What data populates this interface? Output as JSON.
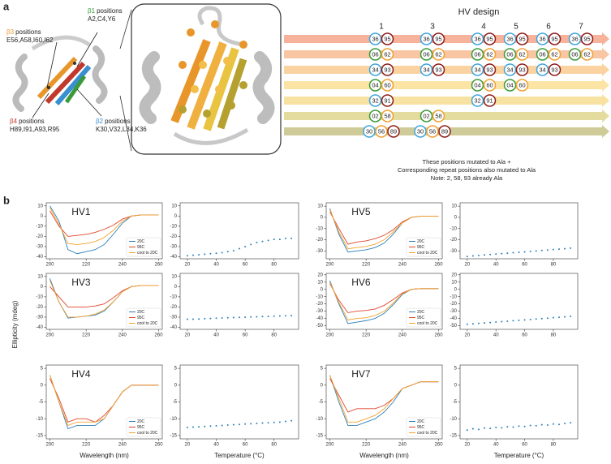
{
  "panel_a": {
    "label": "a",
    "strands": [
      {
        "strand": "β3",
        "suffix": "positions",
        "residues": "E56,A58,I60,I62",
        "color": "#e8962a"
      },
      {
        "strand": "β1",
        "suffix": "positions",
        "residues": "A2,C4,Y6",
        "color": "#3a9a3a"
      },
      {
        "strand": "β4",
        "suffix": "positions",
        "residues": "H89,I91,A93,R95",
        "color": "#c0392b"
      },
      {
        "strand": "β2",
        "suffix": "positions",
        "residues": "K30,V32,L34,K36",
        "color": "#3a8fd0"
      }
    ],
    "design": {
      "title": "HV design",
      "columns": [
        "1",
        "3",
        "4",
        "5",
        "6",
        "7"
      ],
      "rows": [
        {
          "arrow": "#f6b29a",
          "colors": [
            "#3fa4de",
            "#8e1b1b"
          ],
          "cells": [
            [
              "36",
              "95"
            ],
            [
              "36",
              "95"
            ],
            [
              "36",
              "95"
            ],
            [
              "36",
              "95"
            ],
            [
              "36",
              "95"
            ],
            [
              "36",
              "95"
            ]
          ]
        },
        {
          "arrow": "#f9c6a4",
          "colors": [
            "#3a9a3a",
            "#f0a030"
          ],
          "cells": [
            [
              "06",
              "62"
            ],
            [
              "06",
              "62"
            ],
            [
              "06",
              "62"
            ],
            [
              "06",
              "62"
            ],
            [
              "06",
              "62"
            ],
            [
              "06",
              "62"
            ]
          ]
        },
        {
          "arrow": "#fbd3a0",
          "colors": [
            "#3fa4de",
            "#8e1b1b"
          ],
          "cells": [
            [
              "34",
              "93"
            ],
            [
              "34",
              "93"
            ],
            [
              "34",
              "93"
            ],
            [
              "34",
              "93"
            ],
            [
              "34",
              "93"
            ],
            null
          ]
        },
        {
          "arrow": "#fce5a4",
          "colors": [
            "#3a9a3a",
            "#f0a030"
          ],
          "cells": [
            [
              "04",
              "60"
            ],
            null,
            [
              "04",
              "60"
            ],
            [
              "04",
              "60"
            ],
            null,
            null
          ]
        },
        {
          "arrow": "#f8e2a2",
          "colors": [
            "#3fa4de",
            "#8e1b1b"
          ],
          "cells": [
            [
              "32",
              "91"
            ],
            null,
            [
              "32",
              "91"
            ],
            null,
            null,
            null
          ]
        },
        {
          "arrow": "#e4dc9e",
          "colors": [
            "#3a9a3a",
            "#f0a030"
          ],
          "cells": [
            [
              "02",
              "58"
            ],
            [
              "02",
              "58"
            ],
            null,
            null,
            null,
            null
          ]
        },
        {
          "arrow": "#cfcb98",
          "colors": [
            "#3fa4de",
            "#f0a030",
            "#8e1b1b"
          ],
          "cells": [
            [
              "30",
              "56",
              "89"
            ],
            [
              "30",
              "56",
              "89"
            ],
            null,
            null,
            null,
            null
          ]
        }
      ]
    },
    "note": [
      "These positions mutated to Ala +",
      "Corresponding repeat positions also mutated to Ala",
      "Note: 2, 58, 93 already Ala"
    ]
  },
  "panel_b": {
    "label": "b",
    "ylabel": "Ellipticity (mdeg)"
  },
  "chart_data": [
    {
      "type": "line",
      "title": "HV1",
      "x": [
        200,
        205,
        210,
        215,
        220,
        225,
        230,
        235,
        240,
        245,
        250,
        255,
        260
      ],
      "xlim": [
        198,
        262
      ],
      "xticks": [
        200,
        220,
        240,
        260
      ],
      "ylim": [
        -42,
        13
      ],
      "yticks": [
        10,
        0,
        -10,
        -20,
        -30,
        -40
      ],
      "series": [
        {
          "name": "20C",
          "color": "#2c7fb8",
          "values": [
            10,
            -5,
            -33,
            -37,
            -35,
            -33,
            -28,
            -18,
            -7,
            0,
            1,
            1,
            1
          ]
        },
        {
          "name": "95C",
          "color": "#e0452a",
          "values": [
            5,
            -10,
            -20,
            -19,
            -18,
            -16,
            -13,
            -9,
            -3,
            0,
            1,
            1,
            1
          ]
        },
        {
          "name": "cool to 20C",
          "color": "#f5a22c",
          "values": [
            8,
            -8,
            -27,
            -28,
            -27,
            -25,
            -21,
            -14,
            -5,
            0,
            1,
            1,
            1
          ]
        }
      ]
    },
    {
      "type": "scatter",
      "x": [
        20,
        24,
        28,
        32,
        36,
        40,
        44,
        48,
        52,
        56,
        60,
        64,
        68,
        72,
        76,
        80,
        84,
        88,
        92
      ],
      "xlim": [
        15,
        97
      ],
      "xticks": [
        20,
        40,
        60,
        80
      ],
      "ylim": [
        -42,
        13
      ],
      "yticks": [
        10,
        0,
        -10,
        -20,
        -30,
        -40
      ],
      "color": "#2c7fb8",
      "values": [
        -39,
        -38.5,
        -38,
        -37.5,
        -37,
        -36.5,
        -36,
        -35,
        -34,
        -32,
        -30,
        -28,
        -26,
        -25,
        -24,
        -23,
        -23,
        -22,
        -22
      ]
    },
    {
      "type": "line",
      "title": "HV5",
      "x": [
        200,
        205,
        210,
        215,
        220,
        225,
        230,
        235,
        240,
        245,
        250,
        255,
        260
      ],
      "xlim": [
        198,
        262
      ],
      "xticks": [
        200,
        220,
        240,
        260
      ],
      "ylim": [
        -37,
        13
      ],
      "yticks": [
        10,
        0,
        -10,
        -20,
        -30
      ],
      "series": [
        {
          "name": "20C",
          "color": "#2c7fb8",
          "values": [
            8,
            -15,
            -31,
            -30,
            -29,
            -27,
            -23,
            -15,
            -5,
            0,
            1,
            1,
            1
          ]
        },
        {
          "name": "95C",
          "color": "#e0452a",
          "values": [
            5,
            -10,
            -24,
            -22,
            -21,
            -19,
            -16,
            -11,
            -4,
            0,
            1,
            1,
            1
          ]
        },
        {
          "name": "cool to 20C",
          "color": "#f5a22c",
          "values": [
            7,
            -13,
            -28,
            -27,
            -26,
            -24,
            -20,
            -13,
            -5,
            0,
            1,
            1,
            1
          ]
        }
      ]
    },
    {
      "type": "scatter",
      "x": [
        20,
        24,
        28,
        32,
        36,
        40,
        44,
        48,
        52,
        56,
        60,
        64,
        68,
        72,
        76,
        80,
        84,
        88,
        92
      ],
      "xlim": [
        15,
        97
      ],
      "xticks": [
        20,
        40,
        60,
        80
      ],
      "ylim": [
        -37,
        13
      ],
      "yticks": [
        10,
        0,
        -10,
        -20,
        -30
      ],
      "color": "#2c7fb8",
      "values": [
        -35,
        -34.5,
        -34,
        -33.6,
        -33.2,
        -32.8,
        -32.4,
        -32,
        -31.6,
        -31.2,
        -30.8,
        -30.4,
        -30,
        -29.6,
        -29.2,
        -28.8,
        -28.4,
        -28,
        -27.5
      ]
    },
    {
      "type": "line",
      "title": "HV3",
      "x": [
        200,
        205,
        210,
        215,
        220,
        225,
        230,
        235,
        240,
        245,
        250,
        255,
        260
      ],
      "xlim": [
        198,
        262
      ],
      "xticks": [
        200,
        220,
        240,
        260
      ],
      "ylim": [
        -42,
        13
      ],
      "yticks": [
        10,
        0,
        -10,
        -20,
        -30,
        -40
      ],
      "series": [
        {
          "name": "20C",
          "color": "#2c7fb8",
          "values": [
            8,
            -15,
            -31,
            -30,
            -29,
            -28,
            -24,
            -15,
            -5,
            0,
            1,
            1,
            1
          ]
        },
        {
          "name": "95C",
          "color": "#e0452a",
          "values": [
            0,
            -10,
            -20,
            -20,
            -20,
            -19,
            -17,
            -11,
            -4,
            0,
            1,
            1,
            1
          ]
        },
        {
          "name": "cool to 20C",
          "color": "#f5a22c",
          "values": [
            6,
            -15,
            -30,
            -30,
            -29,
            -27,
            -23,
            -15,
            -5,
            0,
            1,
            1,
            1
          ]
        }
      ]
    },
    {
      "type": "scatter",
      "x": [
        20,
        24,
        28,
        32,
        36,
        40,
        44,
        48,
        52,
        56,
        60,
        64,
        68,
        72,
        76,
        80,
        84,
        88,
        92
      ],
      "xlim": [
        15,
        97
      ],
      "xticks": [
        20,
        40,
        60,
        80
      ],
      "ylim": [
        -42,
        13
      ],
      "yticks": [
        10,
        0,
        -10,
        -20,
        -30,
        -40
      ],
      "color": "#2c7fb8",
      "values": [
        -32,
        -32,
        -31.8,
        -31.5,
        -31.3,
        -31,
        -30.8,
        -30.6,
        -30.4,
        -30.2,
        -30,
        -29.8,
        -29.6,
        -29.4,
        -29.2,
        -29,
        -28.8,
        -28.6,
        -28.4
      ]
    },
    {
      "type": "line",
      "title": "HV6",
      "x": [
        200,
        205,
        210,
        215,
        220,
        225,
        230,
        235,
        240,
        245,
        250,
        255,
        260
      ],
      "xlim": [
        198,
        262
      ],
      "xticks": [
        200,
        220,
        240,
        260
      ],
      "ylim": [
        -55,
        22
      ],
      "yticks": [
        20,
        10,
        0,
        -10,
        -20,
        -30,
        -40,
        -50
      ],
      "series": [
        {
          "name": "20C",
          "color": "#2c7fb8",
          "values": [
            12,
            -20,
            -47,
            -45,
            -43,
            -40,
            -33,
            -21,
            -7,
            0,
            1,
            1,
            1
          ]
        },
        {
          "name": "95C",
          "color": "#e0452a",
          "values": [
            8,
            -15,
            -32,
            -30,
            -29,
            -27,
            -22,
            -14,
            -5,
            0,
            1,
            1,
            1
          ]
        },
        {
          "name": "cool to 20C",
          "color": "#f5a22c",
          "values": [
            10,
            -18,
            -42,
            -40,
            -39,
            -36,
            -30,
            -19,
            -6,
            0,
            1,
            1,
            1
          ]
        }
      ]
    },
    {
      "type": "scatter",
      "x": [
        20,
        24,
        28,
        32,
        36,
        40,
        44,
        48,
        52,
        56,
        60,
        64,
        68,
        72,
        76,
        80,
        84,
        88,
        92
      ],
      "xlim": [
        15,
        97
      ],
      "xticks": [
        20,
        40,
        60,
        80
      ],
      "ylim": [
        -55,
        22
      ],
      "yticks": [
        20,
        10,
        0,
        -10,
        -20,
        -30,
        -40,
        -50
      ],
      "color": "#2c7fb8",
      "values": [
        -48,
        -47.4,
        -46.8,
        -46.2,
        -45.6,
        -45,
        -44.4,
        -43.8,
        -43.2,
        -42.6,
        -42,
        -41.4,
        -40.8,
        -40.2,
        -39.6,
        -39,
        -38.4,
        -37.8,
        -37.2
      ]
    },
    {
      "type": "line",
      "title": "HV4",
      "xlabel": "Wavelength (nm)",
      "x": [
        200,
        205,
        210,
        215,
        220,
        225,
        230,
        235,
        240,
        245,
        250,
        255,
        260
      ],
      "xlim": [
        198,
        262
      ],
      "xticks": [
        200,
        220,
        240,
        260
      ],
      "ylim": [
        -16,
        6
      ],
      "yticks": [
        5,
        0,
        -5,
        -10,
        -15
      ],
      "series": [
        {
          "name": "20C",
          "color": "#2c7fb8",
          "values": [
            3,
            -5,
            -13,
            -12,
            -12,
            -12,
            -10,
            -6,
            -2,
            0,
            0,
            0,
            0
          ]
        },
        {
          "name": "95C",
          "color": "#e0452a",
          "values": [
            2,
            -4,
            -11,
            -10,
            -10,
            -11,
            -9,
            -6,
            -2,
            0,
            0,
            0,
            0
          ]
        },
        {
          "name": "cool to 20C",
          "color": "#f5a22c",
          "values": [
            3,
            -5,
            -12,
            -11,
            -11,
            -11,
            -10,
            -6,
            -2,
            0,
            0,
            0,
            0
          ]
        }
      ]
    },
    {
      "type": "scatter",
      "xlabel": "Temperature (°C)",
      "x": [
        20,
        24,
        28,
        32,
        36,
        40,
        44,
        48,
        52,
        56,
        60,
        64,
        68,
        72,
        76,
        80,
        84,
        88,
        92
      ],
      "xlim": [
        15,
        97
      ],
      "xticks": [
        20,
        40,
        60,
        80
      ],
      "ylim": [
        -16,
        6
      ],
      "yticks": [
        5,
        0,
        -5,
        -10,
        -15
      ],
      "color": "#2c7fb8",
      "values": [
        -12.6,
        -12.5,
        -12.4,
        -12.3,
        -12.2,
        -12.1,
        -12,
        -11.9,
        -11.8,
        -11.7,
        -11.6,
        -11.5,
        -11.4,
        -11.3,
        -11.2,
        -11.1,
        -11,
        -10.8,
        -10.6
      ]
    },
    {
      "type": "line",
      "title": "HV7",
      "xlabel": "Wavelength (nm)",
      "x": [
        200,
        205,
        210,
        215,
        220,
        225,
        230,
        235,
        240,
        245,
        250,
        255,
        260
      ],
      "xlim": [
        198,
        262
      ],
      "xticks": [
        200,
        220,
        240,
        260
      ],
      "ylim": [
        -16,
        6
      ],
      "yticks": [
        5,
        0,
        -5,
        -10,
        -15
      ],
      "series": [
        {
          "name": "20C",
          "color": "#2c7fb8",
          "values": [
            3,
            -5,
            -12,
            -12,
            -11,
            -10,
            -8,
            -5,
            -1,
            0,
            1,
            1,
            1
          ]
        },
        {
          "name": "95C",
          "color": "#e0452a",
          "values": [
            2,
            -3,
            -8,
            -7,
            -7,
            -7,
            -6,
            -4,
            -1,
            0,
            1,
            1,
            1
          ]
        },
        {
          "name": "cool to 20C",
          "color": "#f5a22c",
          "values": [
            3,
            -4,
            -11,
            -11,
            -10,
            -9,
            -7,
            -4,
            -1,
            0,
            1,
            1,
            1
          ]
        }
      ]
    },
    {
      "type": "scatter",
      "xlabel": "Temperature (°C)",
      "x": [
        20,
        24,
        28,
        32,
        36,
        40,
        44,
        48,
        52,
        56,
        60,
        64,
        68,
        72,
        76,
        80,
        84,
        88,
        92
      ],
      "xlim": [
        15,
        97
      ],
      "xticks": [
        20,
        40,
        60,
        80
      ],
      "ylim": [
        -16,
        6
      ],
      "yticks": [
        5,
        0,
        -5,
        -10,
        -15
      ],
      "color": "#2c7fb8",
      "values": [
        -13.4,
        -13,
        -13.2,
        -12.8,
        -12.9,
        -12.6,
        -12.7,
        -12.4,
        -12.5,
        -12.2,
        -12.3,
        -12,
        -12.1,
        -11.8,
        -11.9,
        -11.6,
        -11.7,
        -11.4,
        -11.2
      ]
    }
  ]
}
